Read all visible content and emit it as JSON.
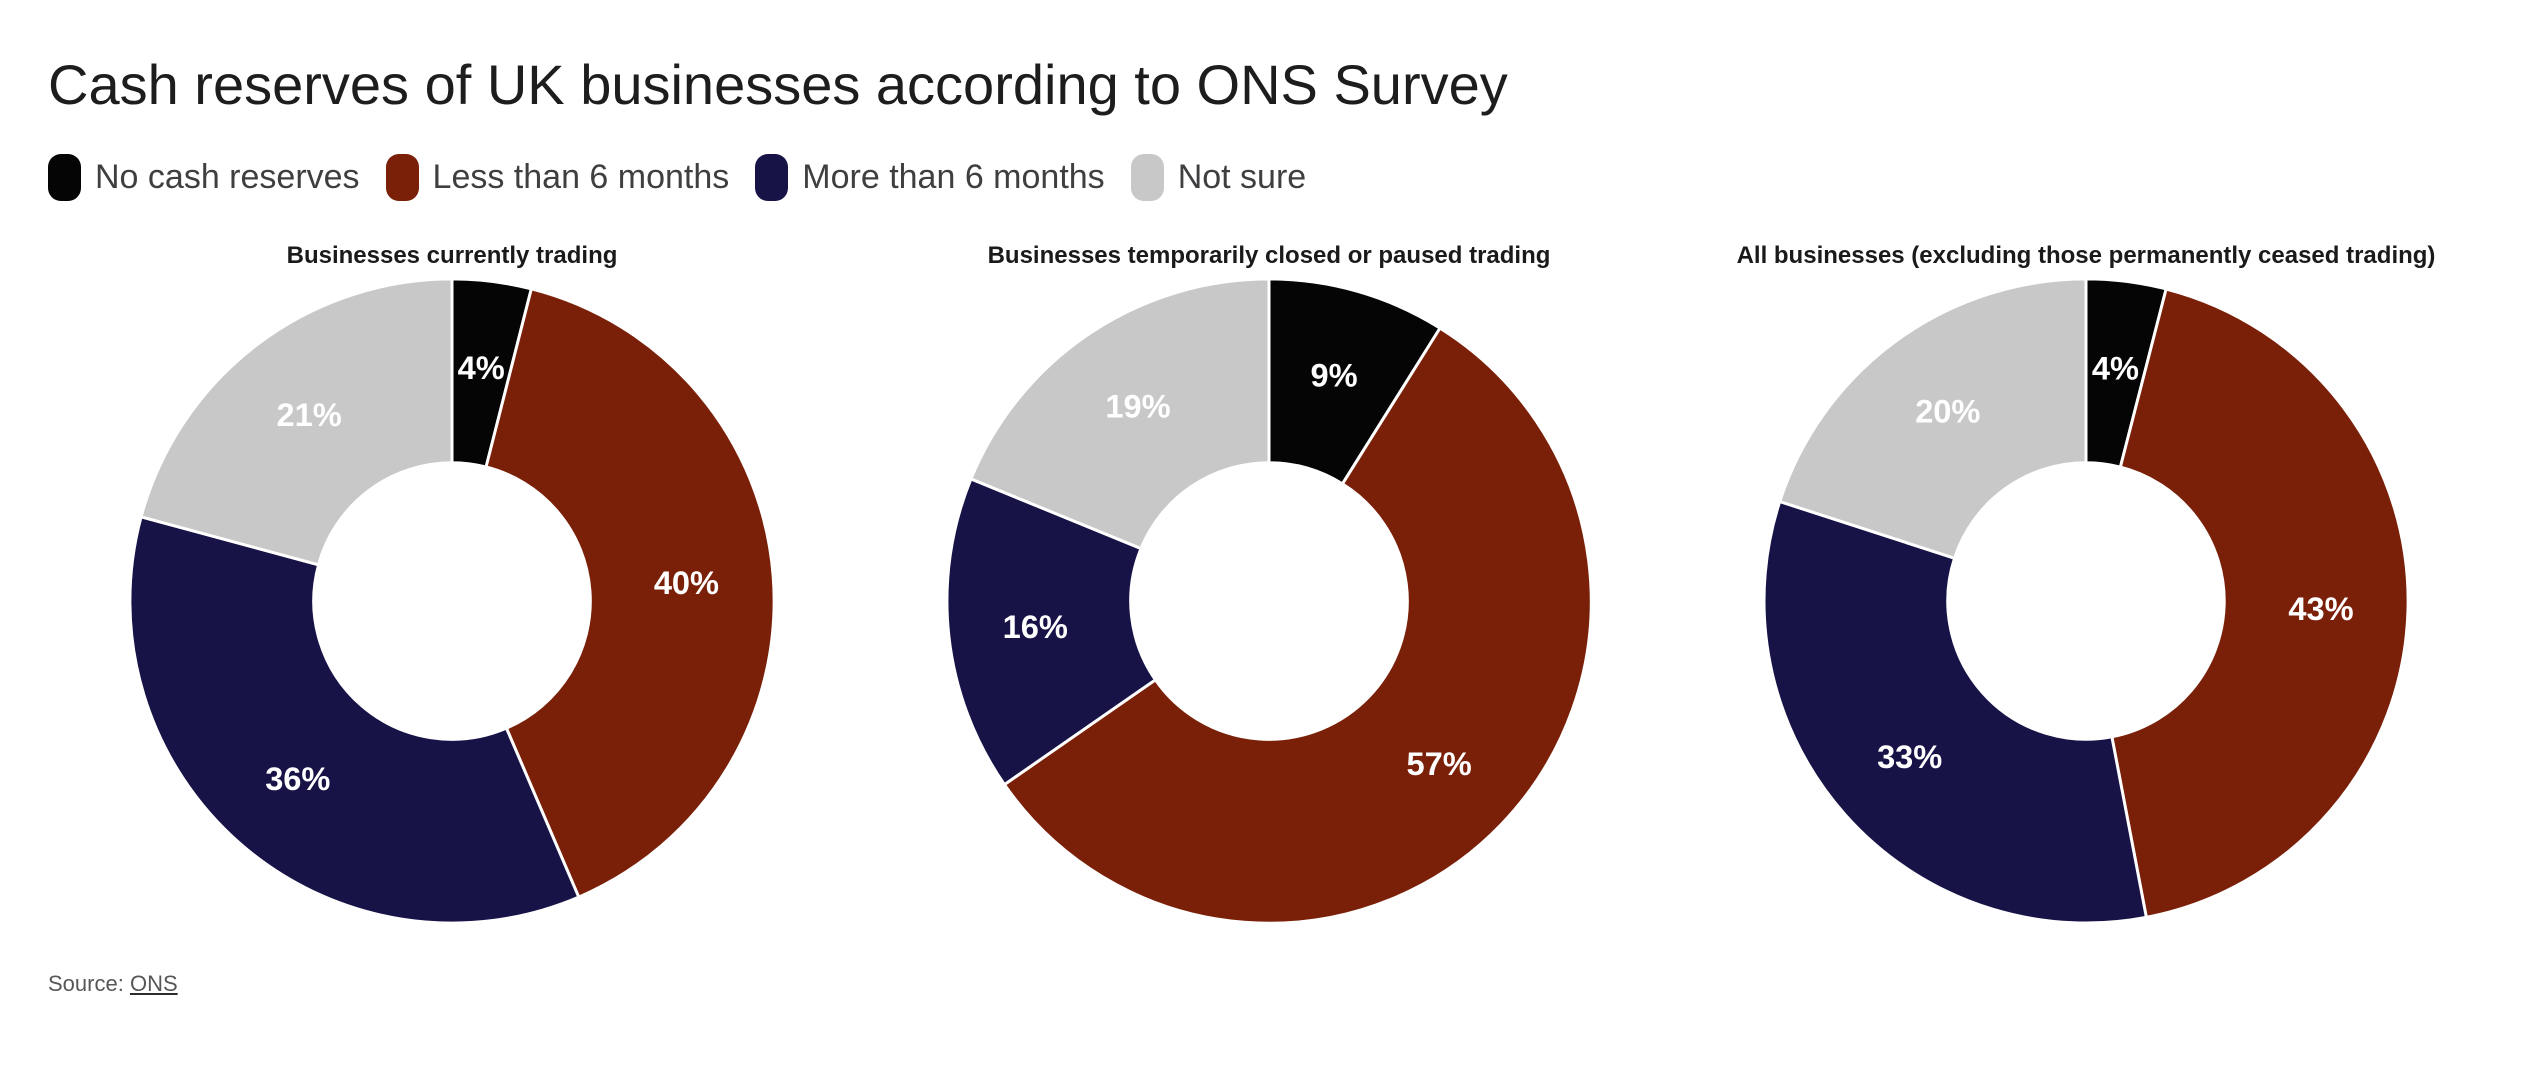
{
  "title": "Cash reserves of UK businesses according to ONS Survey",
  "legend": {
    "items": [
      {
        "name": "no-cash-reserves",
        "label": "No cash reserves",
        "color": "#050505"
      },
      {
        "name": "less-than-6-months",
        "label": "Less than 6 months",
        "color": "#7a2009"
      },
      {
        "name": "more-than-6-months",
        "label": "More than 6 months",
        "color": "#171347"
      },
      {
        "name": "not-sure",
        "label": "Not sure",
        "color": "#c8c8c8"
      }
    ]
  },
  "chart_data": [
    {
      "type": "pie",
      "subtype": "donut",
      "title": "Businesses currently trading",
      "categories": [
        "No cash reserves",
        "Less than 6 months",
        "More than 6 months",
        "Not sure"
      ],
      "values": [
        4,
        40,
        36,
        21
      ],
      "unit": "%",
      "colors": [
        "#050505",
        "#7a2009",
        "#171347",
        "#c8c8c8"
      ],
      "start_angle_deg": 0,
      "direction": "clockwise",
      "inner_radius_ratio": 0.43,
      "label_radius_ratio": 0.73,
      "label_color": "#ffffff",
      "legend_position": "top-left-shared"
    },
    {
      "type": "pie",
      "subtype": "donut",
      "title": "Businesses temporarily closed or paused trading",
      "categories": [
        "No cash reserves",
        "Less than 6 months",
        "More than 6 months",
        "Not sure"
      ],
      "values": [
        9,
        57,
        16,
        19
      ],
      "unit": "%",
      "colors": [
        "#050505",
        "#7a2009",
        "#171347",
        "#c8c8c8"
      ],
      "start_angle_deg": 0,
      "direction": "clockwise",
      "inner_radius_ratio": 0.43,
      "label_radius_ratio": 0.73,
      "label_color": "#ffffff",
      "legend_position": "top-left-shared"
    },
    {
      "type": "pie",
      "subtype": "donut",
      "title": "All businesses (excluding those permanently ceased trading)",
      "categories": [
        "No cash reserves",
        "Less than 6 months",
        "More than 6 months",
        "Not sure"
      ],
      "values": [
        4,
        43,
        33,
        20
      ],
      "unit": "%",
      "colors": [
        "#050505",
        "#7a2009",
        "#171347",
        "#c8c8c8"
      ],
      "start_angle_deg": 0,
      "direction": "clockwise",
      "inner_radius_ratio": 0.43,
      "label_radius_ratio": 0.73,
      "label_color": "#ffffff",
      "legend_position": "top-left-shared"
    }
  ],
  "source": {
    "prefix": "Source:",
    "link_label": "ONS"
  }
}
